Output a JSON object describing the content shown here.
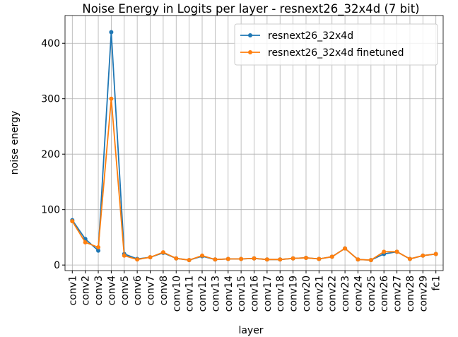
{
  "chart_data": {
    "type": "line",
    "title": "Noise Energy in Logits per layer - resnext26_32x4d (7 bit)",
    "xlabel": "layer",
    "ylabel": "noise energy",
    "categories": [
      "conv1",
      "conv2",
      "conv3",
      "conv4",
      "conv5",
      "conv6",
      "conv7",
      "conv8",
      "conv10",
      "conv11",
      "conv12",
      "conv13",
      "conv14",
      "conv15",
      "conv16",
      "conv17",
      "conv18",
      "conv19",
      "conv20",
      "conv21",
      "conv22",
      "conv23",
      "conv24",
      "conv25",
      "conv26",
      "conv27",
      "conv28",
      "conv29",
      "fc1"
    ],
    "series": [
      {
        "name": "resnext26_32x4d",
        "color": "#1f77b4",
        "values": [
          81,
          47,
          26,
          420,
          20,
          11,
          14,
          22,
          12,
          9,
          16,
          10,
          11,
          11,
          12,
          10,
          10,
          12,
          13,
          11,
          15,
          30,
          10,
          9,
          20,
          24,
          11,
          17,
          20
        ]
      },
      {
        "name": "resnext26_32x4d finetuned",
        "color": "#ff7f0e",
        "values": [
          79,
          41,
          32,
          300,
          17,
          10,
          14,
          23,
          12,
          9,
          17,
          10,
          11,
          11,
          12,
          10,
          10,
          12,
          13,
          11,
          15,
          30,
          10,
          9,
          24,
          24,
          11,
          17,
          20
        ]
      }
    ],
    "ylim": [
      -10,
      450
    ],
    "yticks": [
      0,
      100,
      200,
      300,
      400
    ],
    "grid": true,
    "legend": "upper right"
  }
}
